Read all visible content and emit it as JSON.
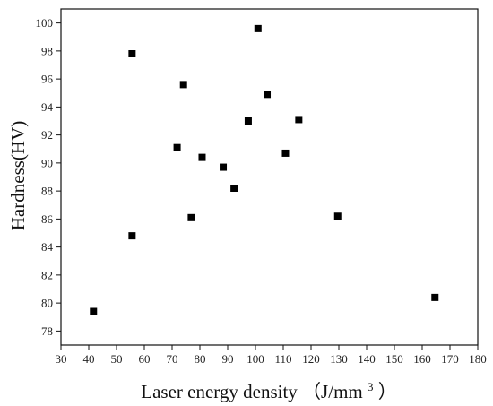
{
  "chart_data": {
    "type": "scatter",
    "title": "",
    "xlabel": "Laser energy density",
    "xlabel_unit_main": "（J/mm",
    "xlabel_unit_sup": "3",
    "xlabel_unit_close": "）",
    "ylabel": "Hardness(HV)",
    "xlim": [
      30,
      180
    ],
    "ylim": [
      77,
      101
    ],
    "x_ticks": [
      30,
      40,
      50,
      60,
      70,
      80,
      90,
      100,
      110,
      120,
      130,
      140,
      150,
      160,
      170,
      180
    ],
    "y_ticks": [
      78,
      80,
      82,
      84,
      86,
      88,
      90,
      92,
      94,
      96,
      98,
      100
    ],
    "grid": false,
    "legend": "none",
    "marker": "square",
    "marker_color": "#000000",
    "points": [
      {
        "x": 41.7,
        "y": 79.4
      },
      {
        "x": 55.6,
        "y": 84.8
      },
      {
        "x": 55.6,
        "y": 97.8
      },
      {
        "x": 71.8,
        "y": 91.1
      },
      {
        "x": 74.1,
        "y": 95.6
      },
      {
        "x": 76.9,
        "y": 86.1
      },
      {
        "x": 80.8,
        "y": 90.4
      },
      {
        "x": 88.4,
        "y": 89.7
      },
      {
        "x": 92.3,
        "y": 88.2
      },
      {
        "x": 97.4,
        "y": 93.0
      },
      {
        "x": 100.9,
        "y": 99.6
      },
      {
        "x": 104.2,
        "y": 94.9
      },
      {
        "x": 110.8,
        "y": 90.7
      },
      {
        "x": 115.6,
        "y": 93.1
      },
      {
        "x": 129.6,
        "y": 86.2
      },
      {
        "x": 164.6,
        "y": 80.4
      }
    ]
  }
}
